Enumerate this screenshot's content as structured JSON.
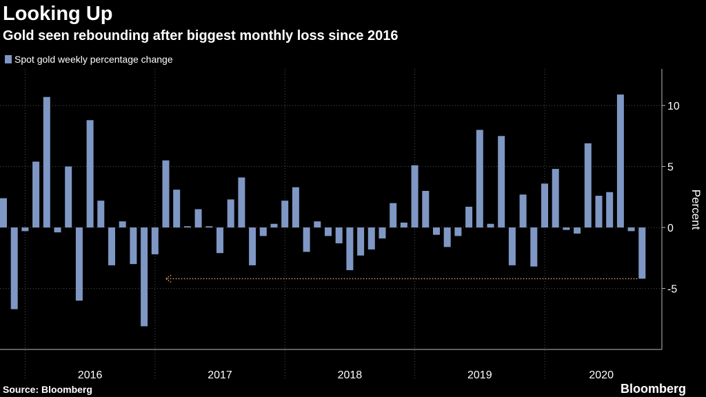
{
  "chart_data": {
    "type": "bar",
    "title": "Looking Up",
    "subtitle": "Gold seen rebounding after biggest monthly loss since 2016",
    "legend_label": "Spot gold weekly percentage change",
    "y_label": "Percent",
    "source": "Source: Bloomberg",
    "brand": "Bloomberg",
    "color": "#7f97c4",
    "annotation_color": "#e0a060",
    "year_labels": [
      "2016",
      "2017",
      "2018",
      "2019",
      "2020"
    ],
    "categories": [
      null,
      null,
      null,
      null,
      null,
      null,
      null,
      null,
      null,
      null,
      null,
      null,
      null,
      null,
      null,
      null,
      null,
      null,
      null,
      null,
      null,
      null,
      null,
      null,
      null,
      null,
      null,
      null,
      null,
      null,
      null,
      null,
      null,
      null,
      null,
      null,
      null,
      null,
      null,
      null,
      null,
      null,
      null,
      null,
      null,
      null,
      null,
      null,
      null,
      null,
      null,
      null,
      null,
      null,
      null,
      null,
      null,
      null,
      null,
      null
    ],
    "values": [
      2.4,
      -6.7,
      -0.3,
      5.4,
      10.7,
      -0.4,
      5.0,
      -6.0,
      8.8,
      2.2,
      -3.1,
      0.5,
      -3.0,
      -8.1,
      -2.2,
      5.5,
      3.1,
      0.1,
      1.5,
      0.1,
      -2.1,
      2.3,
      4.1,
      -3.1,
      -0.7,
      0.3,
      2.2,
      3.3,
      -2.0,
      0.5,
      -0.7,
      -1.3,
      -3.5,
      -2.3,
      -1.8,
      -0.9,
      2.0,
      0.4,
      5.1,
      3.0,
      -0.6,
      -1.6,
      -0.7,
      1.7,
      8.0,
      0.3,
      7.5,
      -3.1,
      2.7,
      -3.2,
      3.6,
      4.8,
      -0.2,
      -0.5,
      6.9,
      2.6,
      2.9,
      10.9,
      -0.3,
      -4.2
    ],
    "ylim": [
      -10,
      13
    ],
    "yticks": [
      -5,
      0,
      5,
      10
    ],
    "grid": true
  }
}
